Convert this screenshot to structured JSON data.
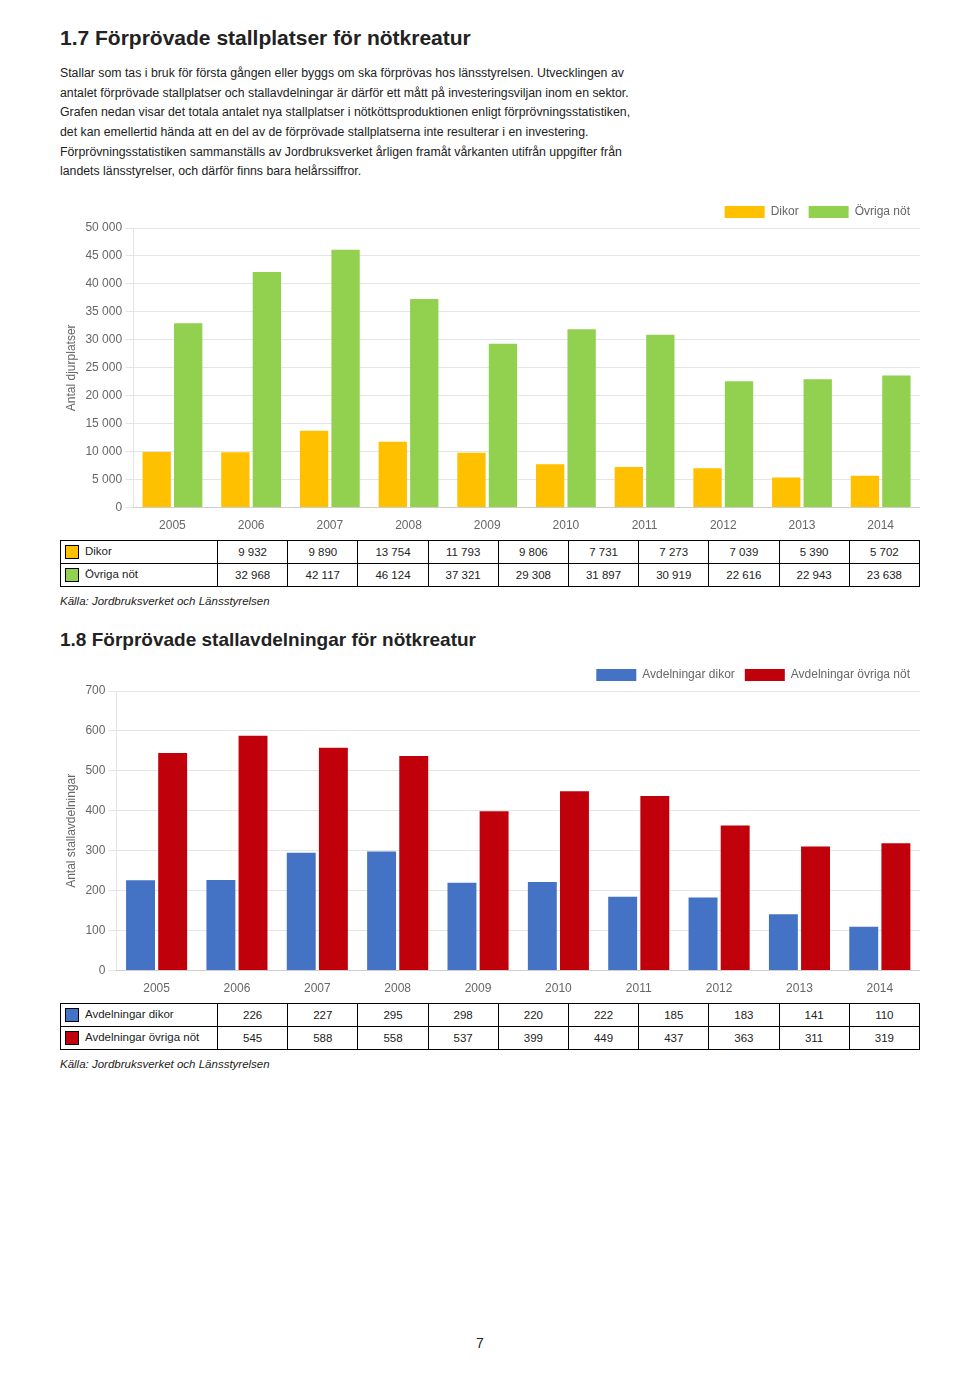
{
  "chart_data": [
    {
      "type": "bar",
      "title": "1.7   Förprövade stallplatser för nötkreatur",
      "subtitle": "Stallar som tas i bruk för första gången eller byggs om ska förprövas hos länsstyrelsen. Utvecklingen av\nantalet förprövade stallplatser och stallavdelningar är därför ett mått på investeringsviljan inom en sektor.\nGrafen nedan visar det totala antalet nya stallplatser i nötköttsproduktionen enligt förprövningsstatistiken,\ndet kan emellertid hända att en del av de förprövade stallplatserna inte resulterar i en investering.\nFörprövningsstatistiken sammanställs av Jordbruksverket årligen framåt vårkanten utifrån uppgifter från\nlandets länsstyrelser, och därför finns bara helårssiffror.",
      "categories": [
        2005,
        2006,
        2007,
        2008,
        2009,
        2010,
        2011,
        2012,
        2013,
        2014
      ],
      "series": [
        {
          "name": "Dikor",
          "color": "#FFC000",
          "values": [
            9932,
            9890,
            13754,
            11793,
            9806,
            7731,
            7273,
            7039,
            5390,
            5702
          ],
          "value_labels": [
            "9 932",
            "9 890",
            "13 754",
            "11 793",
            "9 806",
            "7 731",
            "7 273",
            "7 039",
            "5 390",
            "5 702"
          ]
        },
        {
          "name": "Övriga nöt",
          "color": "#92D050",
          "values": [
            32968,
            42117,
            46124,
            37321,
            29308,
            31897,
            30919,
            22616,
            22943,
            23638
          ],
          "value_labels": [
            "32 968",
            "42 117",
            "46 124",
            "37 321",
            "29 308",
            "31 897",
            "30 919",
            "22 616",
            "22 943",
            "23 638"
          ]
        }
      ],
      "ylabel": "Antal djurplatser",
      "ylim": [
        0,
        50000
      ],
      "yticks": [
        0,
        {
          "value": 5000,
          "label": "5 000"
        },
        {
          "value": 10000,
          "label": "10 000"
        },
        {
          "value": 15000,
          "label": "15 000"
        },
        {
          "value": 20000,
          "label": "20 000"
        },
        {
          "value": 25000,
          "label": "25 000"
        },
        {
          "value": 30000,
          "label": "30 000"
        },
        {
          "value": 35000,
          "label": "35 000"
        },
        {
          "value": 40000,
          "label": "40 000"
        },
        {
          "value": 45000,
          "label": "45 000"
        },
        {
          "value": 50000,
          "label": "50 000"
        }
      ],
      "grid": true,
      "legend": "upper right",
      "annotations": [
        "Källa: Jordbruksverket och Länsstyrelsen"
      ]
    },
    {
      "type": "bar",
      "title": "1.8   Förprövade stallavdelningar för nötkreatur",
      "categories": [
        2005,
        2006,
        2007,
        2008,
        2009,
        2010,
        2011,
        2012,
        2013,
        2014
      ],
      "series": [
        {
          "name": "Avdelningar dikor",
          "color": "#4472C4",
          "values": [
            226,
            227,
            295,
            298,
            220,
            222,
            185,
            183,
            141,
            110
          ],
          "value_labels": [
            "226",
            "227",
            "295",
            "298",
            "220",
            "222",
            "185",
            "183",
            "141",
            "110"
          ]
        },
        {
          "name": "Avdelningar övriga nöt",
          "color": "#C0000A",
          "values": [
            545,
            588,
            558,
            537,
            399,
            449,
            437,
            363,
            311,
            319
          ],
          "value_labels": [
            "545",
            "588",
            "558",
            "537",
            "399",
            "449",
            "437",
            "363",
            "311",
            "319"
          ]
        }
      ],
      "ylabel": "Antal stallavdelningar",
      "ylim": [
        0,
        700
      ],
      "yticks": [
        0,
        100,
        200,
        300,
        400,
        500,
        600,
        700
      ],
      "grid": true,
      "legend": "upper right",
      "annotations": [
        "Källa: Jordbruksverket och Länsstyrelsen"
      ]
    }
  ],
  "annotations": [
    "7"
  ]
}
